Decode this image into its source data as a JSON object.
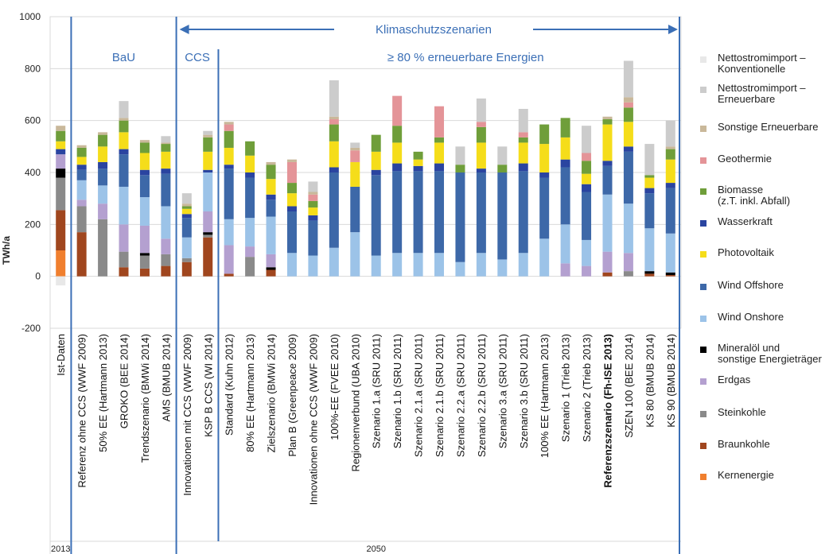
{
  "chart_data": {
    "type": "bar",
    "stacked": true,
    "ylabel": "TWh/a",
    "ylim": [
      -200,
      1000
    ],
    "yticks": [
      -200,
      0,
      200,
      400,
      600,
      800,
      1000
    ],
    "grid": true,
    "legend_position": "right",
    "title": "",
    "xlabel": "",
    "categories": [
      "Ist-Daten",
      "Referenz ohne CCS (WWF 2009)",
      "50% EE (Hartmann 2013)",
      "GROKO (BEE 2014)",
      "Trendszenario (BMWi 2014)",
      "AMS (BMUB 2014)",
      "Innovationen mit CCS (WWF 2009)",
      "KSP B CCS (WI 2014)",
      "Standard (Kuhn 2012)",
      "80% EE (Hartmann 2013)",
      "Zielszenario (BMWi 2014)",
      "Plan B (Greenpeace 2009)",
      "Innovationen ohne CCS (WWF 2009)",
      "100%-EE (FVEE 2010)",
      "Regionenverbund (UBA 2010)",
      "Szenario 1.a (SRU 2011)",
      "Szenario 1.b (SRU 2011)",
      "Szenario 2.1.a (SRU 2011)",
      "Szenario 2.1.b (SRU 2011)",
      "Szenario 2.2.a (SRU 2011)",
      "Szenario 2.2.b (SRU 2011)",
      "Szenario 3.a (SRU 2011)",
      "Szenario 3.b (SRU 2011)",
      "100% EE (Hartmann 2013)",
      "Szenario 1 (Trieb 2013)",
      "Szenario 2 (Trieb 2013)",
      "Referenzszenario (Fh-ISE 2013)",
      "SZEN 100 (BEE 2014)",
      "KS 80 (BMUB 2014)",
      "KS 90 (BMUB 2014)"
    ],
    "highlight_category": "Referenzszenario (Fh-ISE 2013)",
    "series": [
      {
        "name": "Kernenergie",
        "color": "#f07f2e",
        "values": [
          100,
          0,
          0,
          0,
          0,
          0,
          0,
          0,
          0,
          0,
          0,
          0,
          0,
          0,
          0,
          0,
          0,
          0,
          0,
          0,
          0,
          0,
          0,
          0,
          0,
          0,
          0,
          0,
          0,
          0
        ]
      },
      {
        "name": "Braunkohle",
        "color": "#a0461e",
        "values": [
          155,
          170,
          0,
          35,
          30,
          40,
          55,
          150,
          10,
          0,
          25,
          0,
          0,
          0,
          0,
          0,
          0,
          0,
          0,
          0,
          0,
          0,
          0,
          0,
          0,
          0,
          15,
          0,
          10,
          5
        ]
      },
      {
        "name": "Steinkohle",
        "color": "#8a8a8a",
        "values": [
          125,
          100,
          220,
          60,
          50,
          45,
          15,
          10,
          0,
          75,
          0,
          0,
          0,
          0,
          0,
          0,
          0,
          0,
          0,
          0,
          0,
          0,
          0,
          0,
          0,
          0,
          0,
          20,
          0,
          0
        ]
      },
      {
        "name": "Mineralöl und sonstige Energieträger",
        "color": "#000000",
        "values": [
          35,
          0,
          0,
          0,
          10,
          0,
          0,
          10,
          0,
          0,
          10,
          0,
          0,
          0,
          0,
          0,
          0,
          0,
          0,
          0,
          0,
          0,
          0,
          0,
          0,
          0,
          0,
          0,
          10,
          10
        ]
      },
      {
        "name": "Erdgas",
        "color": "#b4a0d0",
        "values": [
          55,
          25,
          60,
          105,
          105,
          60,
          0,
          80,
          110,
          40,
          50,
          0,
          0,
          0,
          0,
          0,
          0,
          0,
          0,
          0,
          0,
          0,
          0,
          0,
          50,
          40,
          80,
          70,
          0,
          0
        ]
      },
      {
        "name": "Wind Onshore",
        "color": "#9cc3e8",
        "values": [
          0,
          75,
          70,
          145,
          110,
          125,
          80,
          150,
          100,
          110,
          145,
          90,
          80,
          110,
          170,
          80,
          90,
          90,
          90,
          55,
          90,
          65,
          90,
          145,
          150,
          100,
          220,
          190,
          165,
          150
        ]
      },
      {
        "name": "Wind Offshore",
        "color": "#3d68a8",
        "values": [
          0,
          40,
          65,
          125,
          85,
          125,
          75,
          0,
          195,
          155,
          65,
          160,
          135,
          290,
          175,
          310,
          315,
          315,
          315,
          345,
          310,
          335,
          315,
          235,
          220,
          185,
          110,
          200,
          135,
          175
        ]
      },
      {
        "name": "Wasserkraft",
        "color": "#2a44a0",
        "values": [
          20,
          20,
          25,
          20,
          20,
          20,
          15,
          10,
          15,
          20,
          20,
          20,
          20,
          20,
          0,
          20,
          30,
          20,
          30,
          0,
          15,
          0,
          30,
          20,
          30,
          30,
          20,
          20,
          20,
          20
        ]
      },
      {
        "name": "Photovoltaik",
        "color": "#f5dd1a",
        "values": [
          30,
          30,
          60,
          65,
          65,
          65,
          20,
          70,
          65,
          65,
          60,
          50,
          30,
          100,
          95,
          70,
          80,
          25,
          80,
          0,
          100,
          0,
          80,
          110,
          85,
          40,
          140,
          95,
          40,
          90
        ]
      },
      {
        "name": "Biomasse (z.T. inkl. Abfall)",
        "color": "#6f9e3a",
        "values": [
          40,
          35,
          45,
          45,
          40,
          30,
          10,
          55,
          65,
          55,
          55,
          40,
          25,
          65,
          0,
          65,
          65,
          30,
          20,
          30,
          60,
          30,
          20,
          75,
          75,
          50,
          20,
          55,
          10,
          40
        ]
      },
      {
        "name": "Geothermie",
        "color": "#e49498",
        "values": [
          0,
          0,
          0,
          0,
          0,
          0,
          0,
          0,
          25,
          0,
          0,
          80,
          25,
          20,
          45,
          0,
          115,
          0,
          120,
          0,
          20,
          0,
          20,
          0,
          0,
          30,
          0,
          20,
          0,
          0
        ]
      },
      {
        "name": "Sonstige Erneuerbare",
        "color": "#c9b89a",
        "values": [
          20,
          10,
          10,
          10,
          10,
          5,
          10,
          10,
          10,
          0,
          10,
          10,
          10,
          10,
          10,
          0,
          0,
          0,
          0,
          0,
          0,
          0,
          0,
          0,
          0,
          0,
          10,
          20,
          0,
          10
        ]
      },
      {
        "name": "Nettostromimport – Erneuerbare",
        "color": "#cccccc",
        "values": [
          0,
          0,
          0,
          65,
          0,
          25,
          40,
          15,
          0,
          0,
          0,
          0,
          40,
          140,
          20,
          0,
          0,
          0,
          0,
          70,
          90,
          70,
          90,
          0,
          0,
          105,
          0,
          140,
          120,
          100
        ]
      },
      {
        "name": "Nettostromimport – Konventionelle",
        "color": "#e8e8e8",
        "values": [
          -35,
          0,
          0,
          0,
          0,
          0,
          0,
          0,
          0,
          0,
          0,
          0,
          0,
          0,
          0,
          0,
          0,
          0,
          0,
          0,
          0,
          0,
          0,
          0,
          0,
          0,
          0,
          0,
          0,
          0
        ]
      }
    ],
    "annotations": {
      "klimaschutz": "Klimaschutzszenarien",
      "bau": "BaU",
      "ccs": "CCS",
      "ee80": "≥ 80 % erneuerbare Energien",
      "year_2013": "2013",
      "year_2050": "2050"
    }
  },
  "legend": [
    {
      "label": "Nettostromimport –\nKonventionelle",
      "color": "#e8e8e8"
    },
    {
      "label": "Nettostromimport –\nErneuerbare",
      "color": "#cccccc"
    },
    {
      "label": "Sonstige Erneuerbare",
      "color": "#c9b89a"
    },
    {
      "label": "Geothermie",
      "color": "#e49498"
    },
    {
      "label": "Biomasse\n(z.T. inkl. Abfall)",
      "color": "#6f9e3a"
    },
    {
      "label": "Wasserkraft",
      "color": "#2a44a0"
    },
    {
      "label": "Photovoltaik",
      "color": "#f5dd1a"
    },
    {
      "label": "Wind Offshore",
      "color": "#3d68a8"
    },
    {
      "label": "Wind Onshore",
      "color": "#9cc3e8"
    },
    {
      "label": "Mineralöl und\nsonstige Energieträger",
      "color": "#000000"
    },
    {
      "label": "Erdgas",
      "color": "#b4a0d0"
    },
    {
      "label": "Steinkohle",
      "color": "#8a8a8a"
    },
    {
      "label": "Braunkohle",
      "color": "#a0461e"
    },
    {
      "label": "Kernenergie",
      "color": "#f07f2e"
    }
  ],
  "colors": {
    "group_line": "#3b6fb6",
    "grid": "#d9d9d9",
    "axis_text": "#222222"
  }
}
